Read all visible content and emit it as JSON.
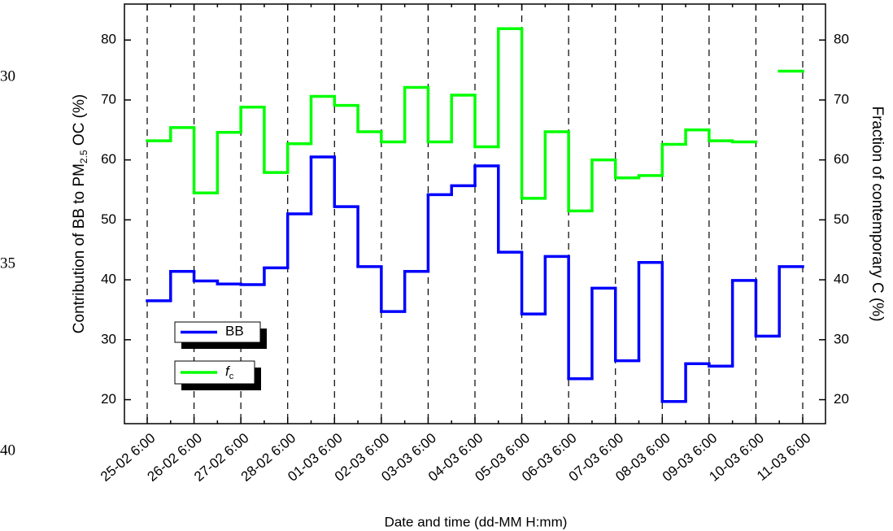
{
  "chart_data": {
    "type": "step",
    "x_label": "Date and time (dd-MM H:mm)",
    "y_label": {
      "text": "Contribution of BB to PM",
      "sub": "2.5",
      "tail": " OC (%)"
    },
    "y2_label": "Fraction of contemporary C (%)",
    "margin_numbers": [
      "30",
      "35",
      "40"
    ],
    "categories": [
      "25-02 6:00",
      null,
      "26-02 6:00",
      null,
      "27-02 6:00",
      null,
      "28-02 6:00",
      null,
      "01-03 6:00",
      null,
      "02-03 6:00",
      null,
      "03-03 6:00",
      null,
      "04-03 6:00",
      null,
      "05-03 6:00",
      null,
      "06-03 6:00",
      null,
      "07-03 6:00",
      null,
      "08-03 6:00",
      null,
      "09-03 6:00",
      null,
      "10-03 6:00",
      null,
      "11-03 6:00"
    ],
    "series": [
      {
        "name": "BB",
        "color": "#0000ff",
        "values": [
          36.5,
          41.4,
          39.8,
          39.3,
          39.2,
          42.0,
          51.0,
          60.5,
          52.2,
          42.2,
          34.7,
          41.4,
          54.2,
          55.7,
          59.0,
          44.6,
          34.3,
          43.9,
          23.5,
          38.6,
          26.5,
          42.9,
          19.7,
          26.0,
          25.6,
          39.9,
          30.6,
          42.2,
          null
        ]
      },
      {
        "name": "f",
        "name_sub": "c",
        "color": "#00ff00",
        "axis": "y2",
        "values": [
          63.2,
          65.4,
          54.5,
          64.6,
          68.8,
          57.9,
          62.7,
          70.6,
          69.1,
          64.7,
          63.0,
          72.1,
          63.0,
          70.8,
          62.2,
          81.9,
          53.6,
          64.7,
          51.5,
          60.0,
          57.0,
          57.4,
          62.6,
          65.0,
          63.2,
          63.0,
          null,
          74.8,
          null
        ]
      }
    ],
    "ylim": [
      16,
      86
    ],
    "yticks": [
      20,
      30,
      40,
      50,
      60,
      70,
      80
    ],
    "y2lim": [
      16,
      86
    ],
    "y2ticks": [
      20,
      30,
      40,
      50,
      60,
      70,
      80
    ],
    "grid": "dashed-x",
    "legend": "lower left"
  }
}
